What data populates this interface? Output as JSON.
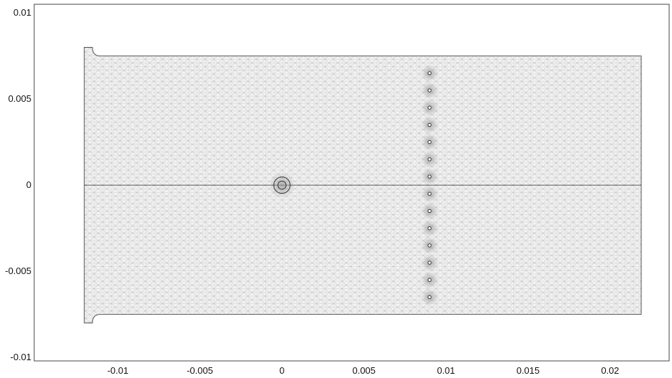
{
  "viewport": {
    "x_ticks": [
      {
        "value": -0.01,
        "label": "-0.01"
      },
      {
        "value": -0.005,
        "label": "-0.005"
      },
      {
        "value": 0,
        "label": "0"
      },
      {
        "value": 0.005,
        "label": "0.005"
      },
      {
        "value": 0.01,
        "label": "0.01"
      },
      {
        "value": 0.015,
        "label": "0.015"
      },
      {
        "value": 0.02,
        "label": "0.02"
      }
    ],
    "y_ticks": [
      {
        "value": 0.01,
        "label": "0.01"
      },
      {
        "value": 0.005,
        "label": "0.005"
      },
      {
        "value": 0,
        "label": "0"
      },
      {
        "value": -0.005,
        "label": "-0.005"
      },
      {
        "value": -0.01,
        "label": "-0.01"
      }
    ],
    "x_range": [
      -0.0151,
      0.0236
    ],
    "y_range": [
      -0.0102,
      0.0105
    ]
  },
  "geometry": {
    "domain_x": [
      -0.01205,
      0.0219
    ],
    "domain_y": [
      -0.0075,
      0.0075
    ],
    "inlet_y": [
      -0.008,
      0.008
    ],
    "inlet_width": 0.0005,
    "fillet_radius": 0.0005,
    "wire": {
      "x": 0,
      "y": 0,
      "radii": [
        0.0005,
        0.00025
      ]
    },
    "probes": {
      "x": 0.009,
      "y_values": [
        0.0065,
        0.0055,
        0.0045,
        0.0035,
        0.0025,
        0.0015,
        0.0005,
        -0.0005,
        -0.0015,
        -0.0025,
        -0.0035,
        -0.0045,
        -0.0055,
        -0.0065
      ],
      "radius": 9e-05
    }
  },
  "style": {
    "mesh_fill": "#f2f2f2",
    "mesh_line": "#c4c4c4",
    "edge_color": "#555555",
    "frame_color": "#444444"
  }
}
